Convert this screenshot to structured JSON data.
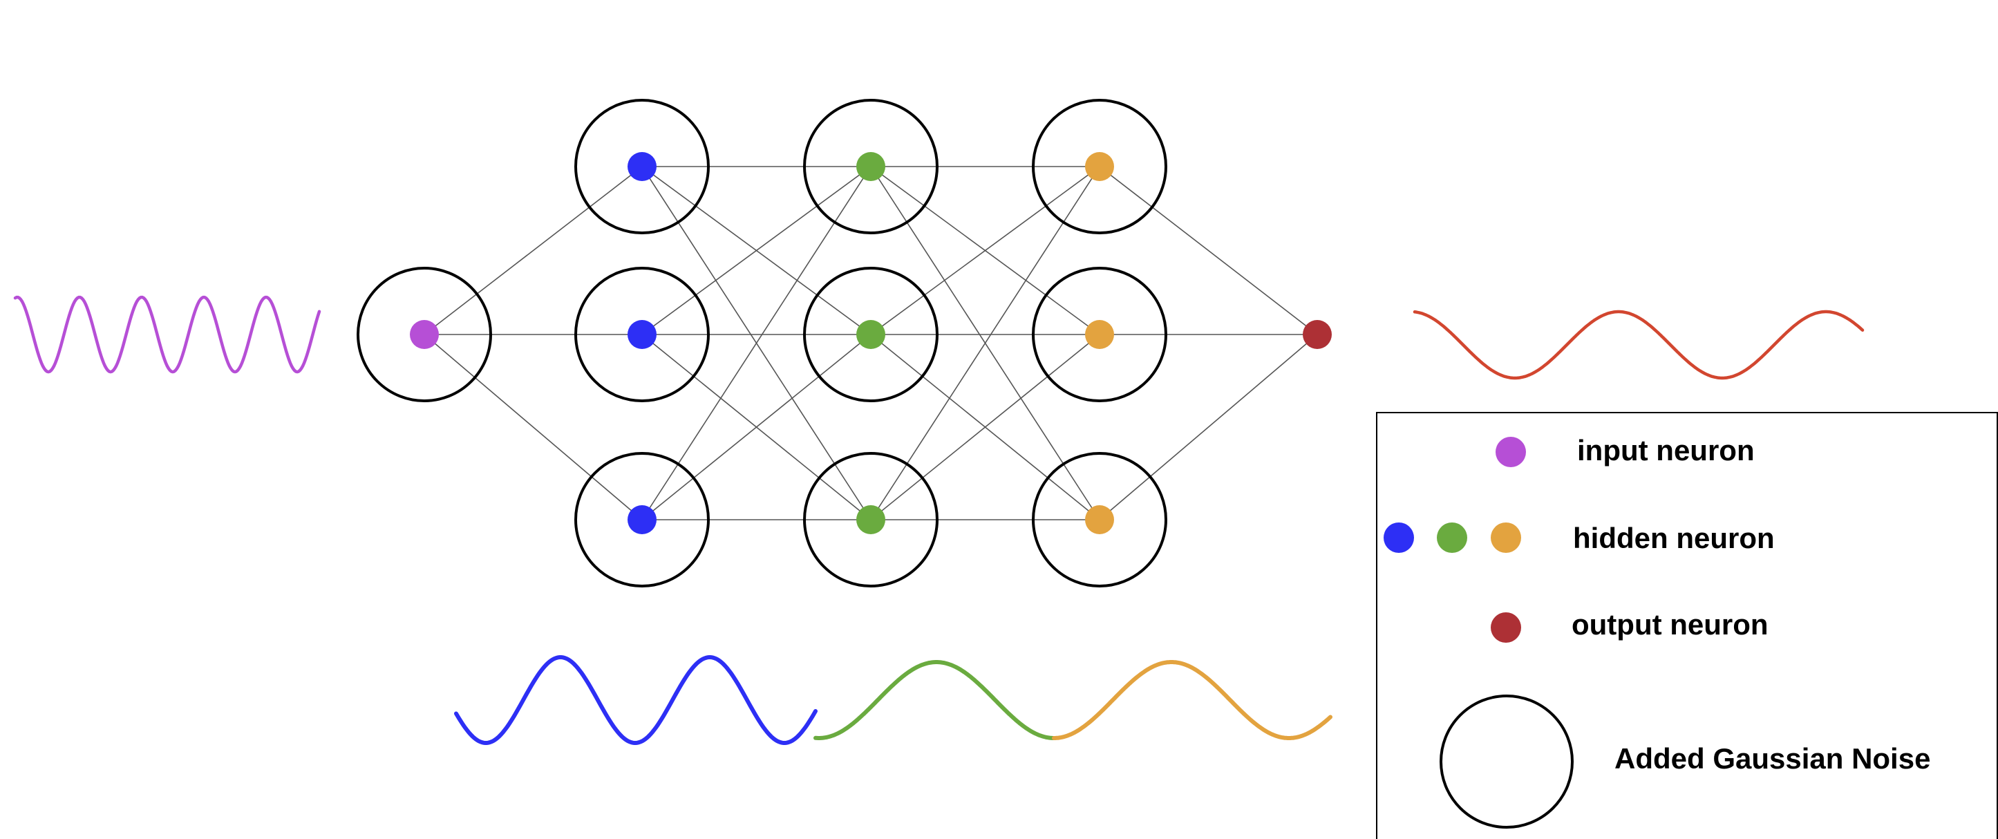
{
  "colors": {
    "input": "#b64fd6",
    "hidden_layer_1": "#2d2ff5",
    "hidden_layer_2": "#6aab3f",
    "hidden_layer_3": "#e3a33f",
    "output": "#ad3035",
    "input_wave": "#b64fd6",
    "output_wave": "#d2462f",
    "noise_ring": "#000000",
    "edge": "#555555"
  },
  "network": {
    "layers": [
      {
        "role": "input",
        "neurons": 1,
        "noise_ring": true
      },
      {
        "role": "hidden",
        "neurons": 3,
        "noise_ring": true
      },
      {
        "role": "hidden",
        "neurons": 3,
        "noise_ring": true
      },
      {
        "role": "hidden",
        "neurons": 3,
        "noise_ring": true
      },
      {
        "role": "output",
        "neurons": 1,
        "noise_ring": false
      }
    ],
    "connectivity": "fully-connected"
  },
  "legend": {
    "input_label": "input neuron",
    "hidden_label": "hidden neuron",
    "output_label": "output neuron",
    "noise_label": "Added Gaussian Noise"
  }
}
